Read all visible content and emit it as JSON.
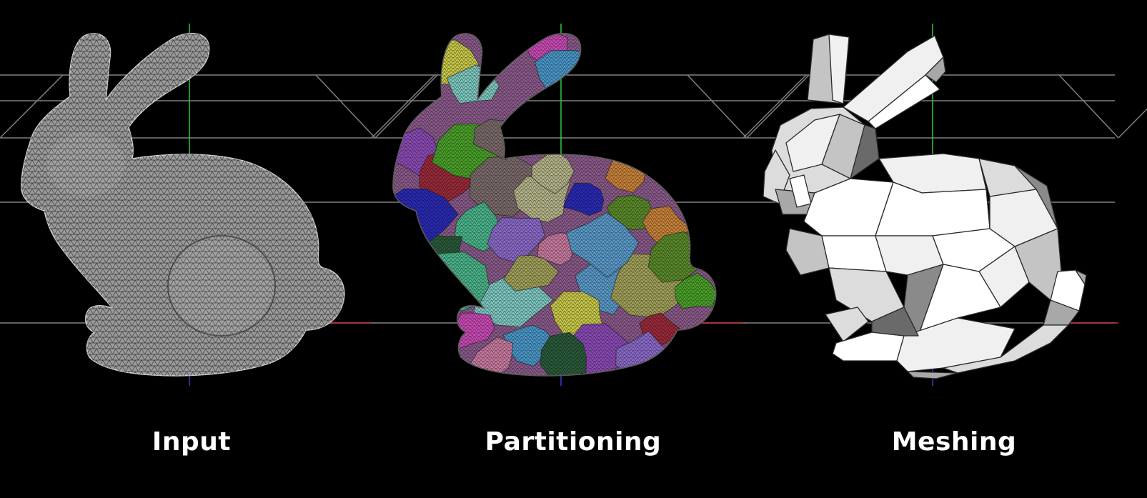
{
  "panels": [
    {
      "id": "input",
      "caption": "Input",
      "style": "wireframe"
    },
    {
      "id": "partitioning",
      "caption": "Partitioning",
      "style": "partitioned"
    },
    {
      "id": "meshing",
      "caption": "Meshing",
      "style": "flat-shaded"
    }
  ],
  "colors": {
    "background": "#000000",
    "grid_line": "#808080",
    "axis_x": "#c8323c",
    "axis_y": "#32c83c",
    "axis_z": "#3c3cc8",
    "wire_fill": "#9a9a9a",
    "wire_line": "#3a3a3a",
    "partition_palette": [
      "#c8c84a",
      "#7ec8c0",
      "#c84ab4",
      "#4a96c8",
      "#8a4ab4",
      "#9a2a3a",
      "#4aa02a",
      "#7a6a6a",
      "#b4b48a",
      "#2a2ab4",
      "#5a8a2a",
      "#c8823a",
      "#4ab48a",
      "#2a5a3a",
      "#8a6ac8",
      "#c87aa0",
      "#5a9ac8",
      "#a0a05a"
    ],
    "mesh_shades": [
      "#ffffff",
      "#f0f0f0",
      "#dcdcdc",
      "#c4c4c4",
      "#a8a8a8",
      "#8a8a8a",
      "#6a6a6a",
      "#3c3c3c"
    ]
  }
}
